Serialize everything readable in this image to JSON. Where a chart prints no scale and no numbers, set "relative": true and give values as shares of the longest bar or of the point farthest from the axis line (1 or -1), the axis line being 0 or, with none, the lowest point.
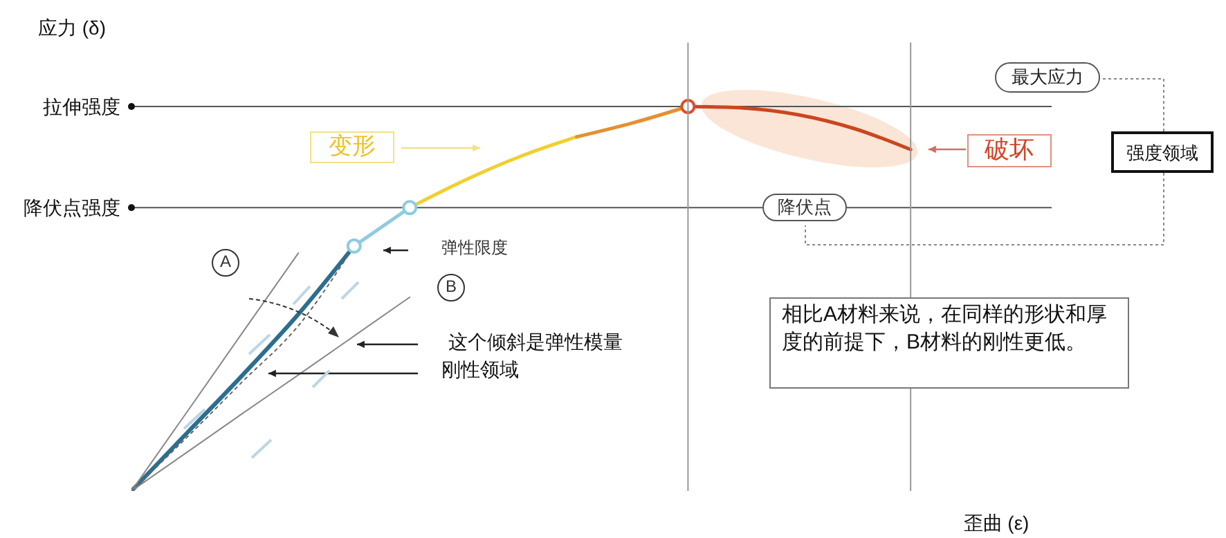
{
  "chart_data": {
    "type": "line",
    "relative": true,
    "xlabel": "歪曲 (ε)",
    "ylabel": "应力 (δ)",
    "categories": [
      null,
      null,
      null,
      null,
      null,
      null,
      null,
      null,
      null,
      null,
      null,
      null,
      null,
      null,
      null
    ],
    "series": [
      {
        "color": "#2c6e8f",
        "values": [
          0,
          0.151,
          0.302,
          0.46,
          0.637,
          null,
          null,
          null,
          null,
          null,
          null,
          null,
          null,
          null,
          null
        ]
      },
      {
        "color": "#8fcbe0",
        "values": [
          null,
          null,
          null,
          null,
          0.637,
          0.737,
          null,
          null,
          null,
          null,
          null,
          null,
          null,
          null,
          null
        ],
        "marker": "circle"
      },
      {
        "color": "#f2cf2f",
        "values": [
          null,
          null,
          null,
          null,
          null,
          0.737,
          0.809,
          0.871,
          0.921,
          null,
          null,
          null,
          null,
          null,
          null
        ]
      },
      {
        "color": "#e69030",
        "values": [
          null,
          null,
          null,
          null,
          null,
          null,
          null,
          null,
          0.921,
          0.957,
          1,
          null,
          null,
          null,
          null
        ]
      },
      {
        "color": "#c9471f",
        "values": [
          null,
          null,
          null,
          null,
          null,
          null,
          null,
          null,
          null,
          null,
          1,
          0.996,
          0.978,
          0.942,
          0.888
        ]
      },
      {
        "color": "#d8502a",
        "values": [
          null,
          null,
          null,
          null,
          null,
          null,
          null,
          null,
          null,
          null,
          1,
          null,
          null,
          null,
          null
        ],
        "marker": "circle"
      },
      {
        "color": "#888888",
        "values": [
          0,
          0.206,
          0.413,
          0.619,
          null,
          null,
          null,
          null,
          null,
          null,
          null,
          null,
          null,
          null,
          null
        ]
      },
      {
        "color": "#888888",
        "values": [
          0,
          0.101,
          0.202,
          0.302,
          0.403,
          0.504,
          null,
          null,
          null,
          null,
          null,
          null,
          null,
          null,
          null
        ]
      },
      {
        "color": "#666666",
        "values": [
          0,
          0.14,
          0.285,
          0.43,
          0.637,
          null,
          null,
          null,
          null,
          null,
          null,
          null,
          null,
          null,
          null
        ],
        "line_style": "dotted"
      }
    ],
    "ref_lines": [
      {
        "axis": "y",
        "value": 1,
        "label": "拉伸强度",
        "color": "#555555"
      },
      {
        "axis": "y",
        "value": 0.737,
        "label": "降伏点强度",
        "color": "#555555"
      }
    ],
    "annotations": [
      "变形",
      "破坏",
      "弹性限度",
      "A",
      "B",
      "这个倾斜是弹性模量",
      "刚性领域",
      "降伏点",
      "最大应力",
      "强度领域",
      "相比A材料来说，在同样的形状和厚度的前提下，B材料的刚性更低。"
    ]
  }
}
